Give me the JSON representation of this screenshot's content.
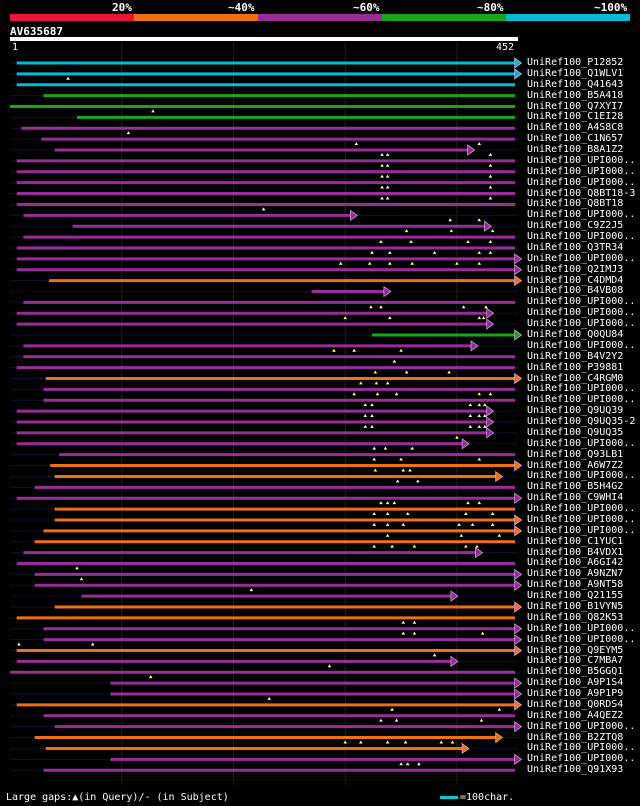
{
  "legend": {
    "items": [
      {
        "label": "20%",
        "color": "#e8173a"
      },
      {
        "label": "~40%",
        "color": "#ef6f12"
      },
      {
        "label": "~60%",
        "color": "#9a2c9a"
      },
      {
        "label": "~80%",
        "color": "#1aa418"
      },
      {
        "label": "~100%",
        "color": "#00bcd4"
      }
    ]
  },
  "query": {
    "name": "AV635687",
    "start": "1",
    "end": "452",
    "length": 452
  },
  "hits": [
    {
      "name": "UniRef100_P12852",
      "color": "#00bcd4",
      "start": 6,
      "end": 460,
      "arrow": true,
      "ins": []
    },
    {
      "name": "UniRef100_Q1WLV1",
      "color": "#00bcd4",
      "start": 6,
      "end": 460,
      "arrow": true,
      "ins": []
    },
    {
      "name": "UniRef100_Q41643",
      "color": "#00bcd4",
      "start": 6,
      "end": 452,
      "arrow": false,
      "ins": [
        52
      ]
    },
    {
      "name": "UniRef100_B5A418",
      "color": "#1aa418",
      "start": 30,
      "end": 452,
      "arrow": false,
      "ins": []
    },
    {
      "name": "UniRef100_Q7XYI7",
      "color": "#1aa418",
      "start": 0,
      "end": 452,
      "arrow": false,
      "ins": []
    },
    {
      "name": "UniRef100_C1EI28",
      "color": "#1aa418",
      "start": 60,
      "end": 452,
      "arrow": false,
      "ins": [
        128
      ]
    },
    {
      "name": "UniRef100_A4S8C8",
      "color": "#9a2c9a",
      "start": 10,
      "end": 452,
      "arrow": false,
      "ins": []
    },
    {
      "name": "UniRef100_C1N657",
      "color": "#9a2c9a",
      "start": 28,
      "end": 452,
      "arrow": false,
      "ins": [
        106
      ]
    },
    {
      "name": "UniRef100_B8A1Z2",
      "color": "#9a2c9a",
      "start": 40,
      "end": 415,
      "arrow": true,
      "ins": [
        310,
        420
      ]
    },
    {
      "name": "UniRef100_UPI000..",
      "color": "#9a2c9a",
      "start": 6,
      "end": 452,
      "arrow": false,
      "ins": [
        333,
        338,
        430
      ]
    },
    {
      "name": "UniRef100_UPI000..",
      "color": "#9a2c9a",
      "start": 6,
      "end": 452,
      "arrow": false,
      "ins": [
        333,
        338,
        430
      ]
    },
    {
      "name": "UniRef100_UPI000..",
      "color": "#9a2c9a",
      "start": 6,
      "end": 452,
      "arrow": false,
      "ins": [
        333,
        338,
        430
      ]
    },
    {
      "name": "UniRef100_Q8BT18-3",
      "color": "#9a2c9a",
      "start": 6,
      "end": 452,
      "arrow": false,
      "ins": [
        333,
        338,
        430
      ]
    },
    {
      "name": "UniRef100_Q8BT18",
      "color": "#9a2c9a",
      "start": 6,
      "end": 452,
      "arrow": false,
      "ins": [
        333,
        338,
        430
      ]
    },
    {
      "name": "UniRef100_UPI000..",
      "color": "#9a2c9a",
      "start": 12,
      "end": 310,
      "arrow": true,
      "ins": [
        227
      ]
    },
    {
      "name": "UniRef100_C9Z2J5",
      "color": "#9a2c9a",
      "start": 56,
      "end": 430,
      "arrow": true,
      "ins": [
        394,
        420
      ]
    },
    {
      "name": "UniRef100_UPI000..",
      "color": "#9a2c9a",
      "start": 12,
      "end": 452,
      "arrow": false,
      "ins": [
        355,
        395,
        432
      ]
    },
    {
      "name": "UniRef100_Q3TR34",
      "color": "#9a2c9a",
      "start": 6,
      "end": 452,
      "arrow": false,
      "ins": [
        332,
        359,
        410,
        430
      ]
    },
    {
      "name": "UniRef100_UPI000..",
      "color": "#9a2c9a",
      "start": 6,
      "end": 460,
      "arrow": true,
      "ins": [
        324,
        340,
        380,
        420,
        430
      ]
    },
    {
      "name": "UniRef100_Q2IMJ3",
      "color": "#9a2c9a",
      "start": 6,
      "end": 460,
      "arrow": true,
      "ins": [
        296,
        322,
        340,
        360,
        400,
        420
      ]
    },
    {
      "name": "UniRef100_C4DMD4",
      "color": "#ef6f12",
      "start": 35,
      "end": 460,
      "arrow": true,
      "ins": []
    },
    {
      "name": "UniRef100_B4VB08",
      "color": "#9a2c9a",
      "start": 270,
      "end": 340,
      "arrow": true,
      "ins": []
    },
    {
      "name": "UniRef100_UPI000..",
      "color": "#9a2c9a",
      "start": 12,
      "end": 452,
      "arrow": false,
      "ins": []
    },
    {
      "name": "UniRef100_UPI000..",
      "color": "#9a2c9a",
      "start": 6,
      "end": 432,
      "arrow": true,
      "ins": [
        323,
        332,
        406,
        426
      ]
    },
    {
      "name": "UniRef100_UPI000..",
      "color": "#9a2c9a",
      "start": 6,
      "end": 432,
      "arrow": true,
      "ins": [
        300,
        340,
        420,
        424
      ]
    },
    {
      "name": "UniRef100_Q0QU84",
      "color": "#1aa418",
      "start": 324,
      "end": 460,
      "arrow": true,
      "ins": []
    },
    {
      "name": "UniRef100_UPI000..",
      "color": "#9a2c9a",
      "start": 12,
      "end": 418,
      "arrow": true,
      "ins": []
    },
    {
      "name": "UniRef100_B4V2Y2",
      "color": "#9a2c9a",
      "start": 12,
      "end": 452,
      "arrow": false,
      "ins": [
        290,
        308,
        350
      ]
    },
    {
      "name": "UniRef100_P39881",
      "color": "#9a2c9a",
      "start": 6,
      "end": 452,
      "arrow": false,
      "ins": [
        344
      ]
    },
    {
      "name": "UniRef100_C4RGM0",
      "color": "#ef6f12",
      "start": 32,
      "end": 460,
      "arrow": true,
      "ins": [
        327,
        355,
        393
      ]
    },
    {
      "name": "UniRef100_UPI000..",
      "color": "#9a2c9a",
      "start": 30,
      "end": 452,
      "arrow": false,
      "ins": [
        314,
        328,
        338
      ]
    },
    {
      "name": "UniRef100_UPI000..",
      "color": "#9a2c9a",
      "start": 30,
      "end": 452,
      "arrow": false,
      "ins": [
        308,
        329,
        346,
        420,
        430
      ]
    },
    {
      "name": "UniRef100_Q9UQ39",
      "color": "#9a2c9a",
      "start": 6,
      "end": 432,
      "arrow": true,
      "ins": [
        318,
        324,
        412,
        420,
        425
      ]
    },
    {
      "name": "UniRef100_Q9UQ35-2",
      "color": "#9a2c9a",
      "start": 6,
      "end": 432,
      "arrow": true,
      "ins": [
        318,
        324,
        412,
        420,
        425
      ]
    },
    {
      "name": "UniRef100_Q9UQ35",
      "color": "#9a2c9a",
      "start": 6,
      "end": 432,
      "arrow": true,
      "ins": [
        318,
        324,
        412,
        420,
        425
      ]
    },
    {
      "name": "UniRef100_UPI000..",
      "color": "#9a2c9a",
      "start": 6,
      "end": 410,
      "arrow": true,
      "ins": [
        400
      ]
    },
    {
      "name": "UniRef100_Q93LB1",
      "color": "#9a2c9a",
      "start": 44,
      "end": 452,
      "arrow": false,
      "ins": [
        326,
        336,
        360
      ]
    },
    {
      "name": "UniRef100_A6W7Z2",
      "color": "#ef6f12",
      "start": 36,
      "end": 460,
      "arrow": true,
      "ins": [
        326,
        350,
        420
      ]
    },
    {
      "name": "UniRef100_UPI000..",
      "color": "#ef6f12",
      "start": 40,
      "end": 440,
      "arrow": true,
      "ins": [
        327,
        352,
        358
      ]
    },
    {
      "name": "UniRef100_B5H4G2",
      "color": "#9a2c9a",
      "start": 22,
      "end": 452,
      "arrow": false,
      "ins": [
        347,
        365
      ]
    },
    {
      "name": "UniRef100_C9WHI4",
      "color": "#9a2c9a",
      "start": 6,
      "end": 460,
      "arrow": true,
      "ins": []
    },
    {
      "name": "UniRef100_UPI000..",
      "color": "#ef6f12",
      "start": 40,
      "end": 452,
      "arrow": false,
      "ins": [
        332,
        338,
        344,
        410,
        420
      ]
    },
    {
      "name": "UniRef100_UPI000..",
      "color": "#ef6f12",
      "start": 40,
      "end": 460,
      "arrow": true,
      "ins": [
        326,
        338,
        356,
        408,
        432
      ]
    },
    {
      "name": "UniRef100_UPI000..",
      "color": "#ef6f12",
      "start": 30,
      "end": 460,
      "arrow": true,
      "ins": [
        326,
        338,
        352,
        402,
        414,
        432
      ]
    },
    {
      "name": "UniRef100_C1YUC1",
      "color": "#ef6f12",
      "start": 22,
      "end": 452,
      "arrow": false,
      "ins": [
        338,
        404,
        438
      ]
    },
    {
      "name": "UniRef100_B4VDX1",
      "color": "#9a2c9a",
      "start": 12,
      "end": 422,
      "arrow": true,
      "ins": [
        326,
        342,
        362,
        408,
        418
      ]
    },
    {
      "name": "UniRef100_A6GI42",
      "color": "#9a2c9a",
      "start": 6,
      "end": 452,
      "arrow": false,
      "ins": []
    },
    {
      "name": "UniRef100_A9NZN7",
      "color": "#9a2c9a",
      "start": 22,
      "end": 460,
      "arrow": true,
      "ins": [
        60
      ]
    },
    {
      "name": "UniRef100_A9NT58",
      "color": "#9a2c9a",
      "start": 22,
      "end": 460,
      "arrow": true,
      "ins": [
        64
      ]
    },
    {
      "name": "UniRef100_Q21155",
      "color": "#9a2c9a",
      "start": 64,
      "end": 400,
      "arrow": true,
      "ins": [
        216
      ]
    },
    {
      "name": "UniRef100_B1VYN5",
      "color": "#ef6f12",
      "start": 40,
      "end": 460,
      "arrow": true,
      "ins": []
    },
    {
      "name": "UniRef100_Q82K53",
      "color": "#ef6f12",
      "start": 6,
      "end": 452,
      "arrow": false,
      "ins": []
    },
    {
      "name": "UniRef100_UPI000..",
      "color": "#9a2c9a",
      "start": 30,
      "end": 460,
      "arrow": true,
      "ins": [
        352,
        362
      ]
    },
    {
      "name": "UniRef100_UPI000..",
      "color": "#9a2c9a",
      "start": 30,
      "end": 460,
      "arrow": true,
      "ins": [
        352,
        362,
        423
      ]
    },
    {
      "name": "UniRef100_Q9EYM5",
      "color": "#ef6f12",
      "start": 6,
      "end": 460,
      "arrow": true,
      "ins": [
        8,
        74
      ]
    },
    {
      "name": "UniRef100_C7MBA7",
      "color": "#9a2c9a",
      "start": 6,
      "end": 400,
      "arrow": true,
      "ins": [
        380
      ]
    },
    {
      "name": "UniRef100_B5GGQ1",
      "color": "#9a2c9a",
      "start": 0,
      "end": 452,
      "arrow": false,
      "ins": [
        286
      ]
    },
    {
      "name": "UniRef100_A9P1S4",
      "color": "#9a2c9a",
      "start": 90,
      "end": 460,
      "arrow": true,
      "ins": [
        126
      ]
    },
    {
      "name": "UniRef100_A9P1P9",
      "color": "#9a2c9a",
      "start": 90,
      "end": 460,
      "arrow": true,
      "ins": []
    },
    {
      "name": "UniRef100_Q0RDS4",
      "color": "#ef6f12",
      "start": 6,
      "end": 460,
      "arrow": true,
      "ins": [
        232
      ]
    },
    {
      "name": "UniRef100_A4QEZ2",
      "color": "#9a2c9a",
      "start": 30,
      "end": 452,
      "arrow": false,
      "ins": [
        342,
        438
      ]
    },
    {
      "name": "UniRef100_UPI000..",
      "color": "#9a2c9a",
      "start": 40,
      "end": 460,
      "arrow": true,
      "ins": [
        332,
        346,
        422
      ]
    },
    {
      "name": "UniRef100_B2ZTQ8",
      "color": "#ef6f12",
      "start": 22,
      "end": 440,
      "arrow": true,
      "ins": []
    },
    {
      "name": "UniRef100_UPI000..",
      "color": "#ef6f12",
      "start": 32,
      "end": 410,
      "arrow": true,
      "ins": [
        300,
        314,
        338,
        354,
        386,
        396
      ]
    },
    {
      "name": "UniRef100_UPI000..",
      "color": "#9a2c9a",
      "start": 90,
      "end": 460,
      "arrow": true,
      "ins": []
    },
    {
      "name": "UniRef100_Q91X93",
      "color": "#9a2c9a",
      "start": 30,
      "end": 452,
      "arrow": false,
      "ins": [
        350,
        356,
        366
      ]
    }
  ],
  "footer": {
    "gaps_text": "Large gaps:▲(in Query)/- (in Subject)",
    "scale_text": "=100char."
  }
}
